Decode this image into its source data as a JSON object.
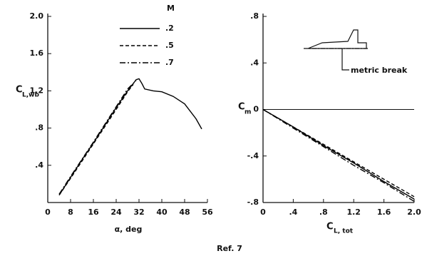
{
  "chart_data": [
    {
      "type": "line",
      "ylabel": "C",
      "ylabel_sub": "L,wb",
      "xlabel": "α, deg",
      "legend_title": "M",
      "xlim": [
        0,
        56
      ],
      "xticks": [
        0,
        8,
        16,
        24,
        32,
        40,
        48,
        56
      ],
      "ylim": [
        0,
        2.0
      ],
      "yticks": [
        {
          "value": 0.4,
          "label": ".4"
        },
        {
          "value": 0.8,
          "label": ".8"
        },
        1.2,
        1.6,
        {
          "value": 2.0,
          "label": "2.0"
        }
      ],
      "series": [
        {
          "name": ".2",
          "color": "#000000",
          "dash": "solid",
          "x": [
            4,
            8,
            12,
            16,
            20,
            24,
            28,
            30,
            31,
            32,
            33,
            34,
            37,
            40,
            44,
            48,
            52,
            54
          ],
          "values": [
            0.08,
            0.27,
            0.46,
            0.64,
            0.83,
            1.02,
            1.2,
            1.28,
            1.32,
            1.33,
            1.28,
            1.22,
            1.2,
            1.19,
            1.14,
            1.06,
            0.9,
            0.79
          ]
        },
        {
          "name": ".5",
          "color": "#000000",
          "dash": "dashed",
          "x": [
            4,
            8,
            16,
            24,
            28,
            30
          ],
          "values": [
            0.08,
            0.26,
            0.63,
            1.0,
            1.19,
            1.27
          ]
        },
        {
          "name": ".7",
          "color": "#000000",
          "dash": "dashdot",
          "x": [
            4,
            8,
            16,
            24,
            28,
            31
          ],
          "values": [
            0.09,
            0.28,
            0.65,
            1.03,
            1.22,
            1.31
          ]
        }
      ]
    },
    {
      "type": "line",
      "ylabel": "C",
      "ylabel_sub": "m",
      "xlabel": "C",
      "xlabel_sub": "L, tot",
      "annotation": "metric break",
      "zero_line": true,
      "xlim": [
        0,
        2.0
      ],
      "xticks": [
        0,
        {
          "value": 0.4,
          "label": ".4"
        },
        {
          "value": 0.8,
          "label": ".8"
        },
        1.2,
        1.6,
        {
          "value": 2.0,
          "label": "2.0"
        }
      ],
      "ylim": [
        -0.8,
        0.8
      ],
      "yticks": [
        {
          "value": 0.8,
          "label": ".8"
        },
        {
          "value": 0.4,
          "label": ".4"
        },
        0,
        {
          "value": -0.4,
          "label": "-.4"
        },
        {
          "value": -0.8,
          "label": "-.8"
        }
      ],
      "series": [
        {
          "color": "#000000",
          "dash": "solid",
          "x": [
            0,
            0.4,
            0.8,
            1.2,
            1.6,
            2.0
          ],
          "values": [
            0,
            -0.15,
            -0.31,
            -0.46,
            -0.62,
            -0.77
          ]
        },
        {
          "color": "#000000",
          "dash": "dashed",
          "x": [
            0,
            0.4,
            0.8,
            1.2,
            1.6,
            2.0
          ],
          "values": [
            0,
            -0.15,
            -0.3,
            -0.45,
            -0.6,
            -0.75
          ]
        },
        {
          "color": "#000000",
          "dash": "dashdot",
          "x": [
            0,
            0.4,
            0.8,
            1.2,
            1.6,
            2.0
          ],
          "values": [
            0,
            -0.16,
            -0.32,
            -0.48,
            -0.63,
            -0.79
          ]
        }
      ]
    }
  ],
  "footer": "Ref. 7"
}
